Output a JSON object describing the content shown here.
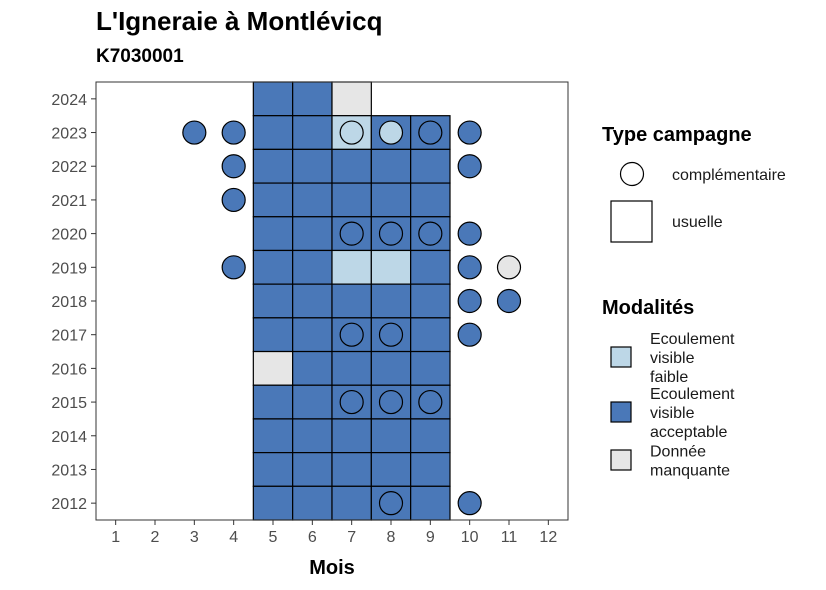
{
  "chart_data": {
    "type": "heatmap",
    "title": "L'Igneraie à Montlévicq",
    "subtitle": "K7030001",
    "xlabel": "Mois",
    "ylabel": "",
    "x_ticks": [
      "1",
      "2",
      "3",
      "4",
      "5",
      "6",
      "7",
      "8",
      "9",
      "10",
      "11",
      "12"
    ],
    "y_ticks": [
      "2012",
      "2013",
      "2014",
      "2015",
      "2016",
      "2017",
      "2018",
      "2019",
      "2020",
      "2021",
      "2022",
      "2023",
      "2024"
    ],
    "xlim": [
      0.5,
      12.5
    ],
    "ylim": [
      2011.5,
      2024.5
    ],
    "grid": false,
    "legend_position": "right",
    "colors": {
      "Ecoulement visible faible": "#bdd7e7",
      "Ecoulement visible acceptable": "#4a78b8",
      "Donnée manquante": "#e6e6e6"
    },
    "legend_type": {
      "title": "Type campagne",
      "items": [
        {
          "label": "complémentaire",
          "shape": "circle"
        },
        {
          "label": "usuelle",
          "shape": "square"
        }
      ]
    },
    "legend_modalites": {
      "title": "Modalités",
      "items": [
        {
          "label_lines": [
            "Ecoulement",
            "visible",
            "faible"
          ],
          "key": "Ecoulement visible faible"
        },
        {
          "label_lines": [
            "Ecoulement",
            "visible",
            "acceptable"
          ],
          "key": "Ecoulement visible acceptable"
        },
        {
          "label_lines": [
            "Donnée",
            "manquante"
          ],
          "key": "Donnée manquante"
        }
      ]
    },
    "usuelle": [
      {
        "year": 2024,
        "month": 5,
        "value": "Ecoulement visible acceptable"
      },
      {
        "year": 2024,
        "month": 6,
        "value": "Ecoulement visible acceptable"
      },
      {
        "year": 2024,
        "month": 7,
        "value": "Donnée manquante"
      },
      {
        "year": 2023,
        "month": 5,
        "value": "Ecoulement visible acceptable"
      },
      {
        "year": 2023,
        "month": 6,
        "value": "Ecoulement visible acceptable"
      },
      {
        "year": 2023,
        "month": 7,
        "value": "Ecoulement visible faible"
      },
      {
        "year": 2023,
        "month": 8,
        "value": "Ecoulement visible acceptable"
      },
      {
        "year": 2023,
        "month": 9,
        "value": "Ecoulement visible acceptable"
      },
      {
        "year": 2022,
        "month": 5,
        "value": "Ecoulement visible acceptable"
      },
      {
        "year": 2022,
        "month": 6,
        "value": "Ecoulement visible acceptable"
      },
      {
        "year": 2022,
        "month": 7,
        "value": "Ecoulement visible acceptable"
      },
      {
        "year": 2022,
        "month": 8,
        "value": "Ecoulement visible acceptable"
      },
      {
        "year": 2022,
        "month": 9,
        "value": "Ecoulement visible acceptable"
      },
      {
        "year": 2021,
        "month": 5,
        "value": "Ecoulement visible acceptable"
      },
      {
        "year": 2021,
        "month": 6,
        "value": "Ecoulement visible acceptable"
      },
      {
        "year": 2021,
        "month": 7,
        "value": "Ecoulement visible acceptable"
      },
      {
        "year": 2021,
        "month": 8,
        "value": "Ecoulement visible acceptable"
      },
      {
        "year": 2021,
        "month": 9,
        "value": "Ecoulement visible acceptable"
      },
      {
        "year": 2020,
        "month": 5,
        "value": "Ecoulement visible acceptable"
      },
      {
        "year": 2020,
        "month": 6,
        "value": "Ecoulement visible acceptable"
      },
      {
        "year": 2020,
        "month": 7,
        "value": "Ecoulement visible acceptable"
      },
      {
        "year": 2020,
        "month": 8,
        "value": "Ecoulement visible acceptable"
      },
      {
        "year": 2020,
        "month": 9,
        "value": "Ecoulement visible acceptable"
      },
      {
        "year": 2019,
        "month": 5,
        "value": "Ecoulement visible acceptable"
      },
      {
        "year": 2019,
        "month": 6,
        "value": "Ecoulement visible acceptable"
      },
      {
        "year": 2019,
        "month": 7,
        "value": "Ecoulement visible faible"
      },
      {
        "year": 2019,
        "month": 8,
        "value": "Ecoulement visible faible"
      },
      {
        "year": 2019,
        "month": 9,
        "value": "Ecoulement visible acceptable"
      },
      {
        "year": 2018,
        "month": 5,
        "value": "Ecoulement visible acceptable"
      },
      {
        "year": 2018,
        "month": 6,
        "value": "Ecoulement visible acceptable"
      },
      {
        "year": 2018,
        "month": 7,
        "value": "Ecoulement visible acceptable"
      },
      {
        "year": 2018,
        "month": 8,
        "value": "Ecoulement visible acceptable"
      },
      {
        "year": 2018,
        "month": 9,
        "value": "Ecoulement visible acceptable"
      },
      {
        "year": 2017,
        "month": 5,
        "value": "Ecoulement visible acceptable"
      },
      {
        "year": 2017,
        "month": 6,
        "value": "Ecoulement visible acceptable"
      },
      {
        "year": 2017,
        "month": 7,
        "value": "Ecoulement visible acceptable"
      },
      {
        "year": 2017,
        "month": 8,
        "value": "Ecoulement visible acceptable"
      },
      {
        "year": 2017,
        "month": 9,
        "value": "Ecoulement visible acceptable"
      },
      {
        "year": 2016,
        "month": 5,
        "value": "Donnée manquante"
      },
      {
        "year": 2016,
        "month": 6,
        "value": "Ecoulement visible acceptable"
      },
      {
        "year": 2016,
        "month": 7,
        "value": "Ecoulement visible acceptable"
      },
      {
        "year": 2016,
        "month": 8,
        "value": "Ecoulement visible acceptable"
      },
      {
        "year": 2016,
        "month": 9,
        "value": "Ecoulement visible acceptable"
      },
      {
        "year": 2015,
        "month": 5,
        "value": "Ecoulement visible acceptable"
      },
      {
        "year": 2015,
        "month": 6,
        "value": "Ecoulement visible acceptable"
      },
      {
        "year": 2015,
        "month": 7,
        "value": "Ecoulement visible acceptable"
      },
      {
        "year": 2015,
        "month": 8,
        "value": "Ecoulement visible acceptable"
      },
      {
        "year": 2015,
        "month": 9,
        "value": "Ecoulement visible acceptable"
      },
      {
        "year": 2014,
        "month": 5,
        "value": "Ecoulement visible acceptable"
      },
      {
        "year": 2014,
        "month": 6,
        "value": "Ecoulement visible acceptable"
      },
      {
        "year": 2014,
        "month": 7,
        "value": "Ecoulement visible acceptable"
      },
      {
        "year": 2014,
        "month": 8,
        "value": "Ecoulement visible acceptable"
      },
      {
        "year": 2014,
        "month": 9,
        "value": "Ecoulement visible acceptable"
      },
      {
        "year": 2013,
        "month": 5,
        "value": "Ecoulement visible acceptable"
      },
      {
        "year": 2013,
        "month": 6,
        "value": "Ecoulement visible acceptable"
      },
      {
        "year": 2013,
        "month": 7,
        "value": "Ecoulement visible acceptable"
      },
      {
        "year": 2013,
        "month": 8,
        "value": "Ecoulement visible acceptable"
      },
      {
        "year": 2013,
        "month": 9,
        "value": "Ecoulement visible acceptable"
      },
      {
        "year": 2012,
        "month": 5,
        "value": "Ecoulement visible acceptable"
      },
      {
        "year": 2012,
        "month": 6,
        "value": "Ecoulement visible acceptable"
      },
      {
        "year": 2012,
        "month": 7,
        "value": "Ecoulement visible acceptable"
      },
      {
        "year": 2012,
        "month": 8,
        "value": "Ecoulement visible acceptable"
      },
      {
        "year": 2012,
        "month": 9,
        "value": "Ecoulement visible acceptable"
      }
    ],
    "complementaire": [
      {
        "year": 2023,
        "month": 3,
        "value": "Ecoulement visible acceptable"
      },
      {
        "year": 2023,
        "month": 4,
        "value": "Ecoulement visible acceptable"
      },
      {
        "year": 2023,
        "month": 7,
        "value": "Ecoulement visible faible"
      },
      {
        "year": 2023,
        "month": 8,
        "value": "Ecoulement visible faible"
      },
      {
        "year": 2023,
        "month": 9,
        "value": "Ecoulement visible acceptable"
      },
      {
        "year": 2023,
        "month": 10,
        "value": "Ecoulement visible acceptable"
      },
      {
        "year": 2022,
        "month": 4,
        "value": "Ecoulement visible acceptable"
      },
      {
        "year": 2022,
        "month": 10,
        "value": "Ecoulement visible acceptable"
      },
      {
        "year": 2021,
        "month": 4,
        "value": "Ecoulement visible acceptable"
      },
      {
        "year": 2020,
        "month": 7,
        "value": "Ecoulement visible acceptable"
      },
      {
        "year": 2020,
        "month": 8,
        "value": "Ecoulement visible acceptable"
      },
      {
        "year": 2020,
        "month": 9,
        "value": "Ecoulement visible acceptable"
      },
      {
        "year": 2020,
        "month": 10,
        "value": "Ecoulement visible acceptable"
      },
      {
        "year": 2019,
        "month": 4,
        "value": "Ecoulement visible acceptable"
      },
      {
        "year": 2019,
        "month": 10,
        "value": "Ecoulement visible acceptable"
      },
      {
        "year": 2019,
        "month": 11,
        "value": "Donnée manquante"
      },
      {
        "year": 2018,
        "month": 10,
        "value": "Ecoulement visible acceptable"
      },
      {
        "year": 2018,
        "month": 11,
        "value": "Ecoulement visible acceptable"
      },
      {
        "year": 2017,
        "month": 7,
        "value": "Ecoulement visible acceptable"
      },
      {
        "year": 2017,
        "month": 8,
        "value": "Ecoulement visible acceptable"
      },
      {
        "year": 2017,
        "month": 10,
        "value": "Ecoulement visible acceptable"
      },
      {
        "year": 2015,
        "month": 7,
        "value": "Ecoulement visible acceptable"
      },
      {
        "year": 2015,
        "month": 8,
        "value": "Ecoulement visible acceptable"
      },
      {
        "year": 2015,
        "month": 9,
        "value": "Ecoulement visible acceptable"
      },
      {
        "year": 2012,
        "month": 8,
        "value": "Ecoulement visible acceptable"
      },
      {
        "year": 2012,
        "month": 10,
        "value": "Ecoulement visible acceptable"
      }
    ]
  }
}
